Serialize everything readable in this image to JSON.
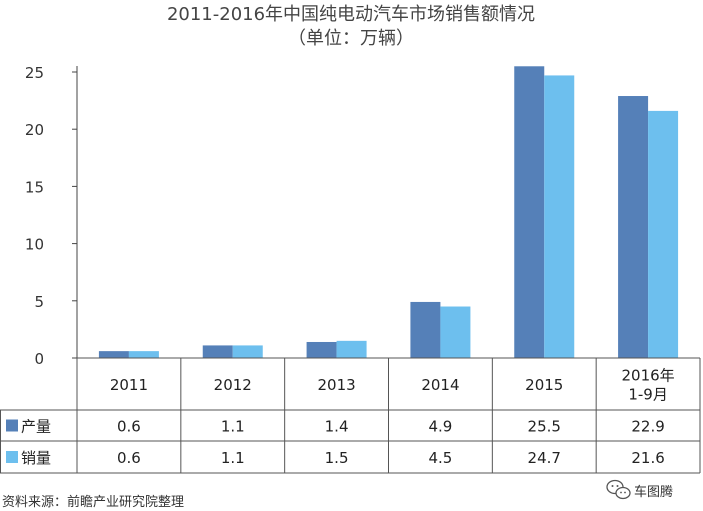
{
  "chart_data": {
    "type": "bar",
    "title": "2011-2016年中国纯电动汽车市场销售额情况",
    "subtitle": "（单位：万辆）",
    "categories": [
      [
        "2011"
      ],
      [
        "2012"
      ],
      [
        "2013"
      ],
      [
        "2014"
      ],
      [
        "2015"
      ],
      [
        "2016年",
        "1-9月"
      ]
    ],
    "series": [
      {
        "name": "产量",
        "color": "#5580b8",
        "values": [
          0.6,
          1.1,
          1.4,
          4.9,
          25.5,
          22.9
        ],
        "labels": [
          "0.6",
          "1.1",
          "1.4",
          "4.9",
          "25.5",
          "22.9"
        ]
      },
      {
        "name": "销量",
        "color": "#6dbfee",
        "values": [
          0.6,
          1.1,
          1.5,
          4.5,
          24.7,
          21.6
        ],
        "labels": [
          "0.6",
          "1.1",
          "1.5",
          "4.5",
          "24.7",
          "21.6"
        ]
      }
    ],
    "ylim": [
      0,
      25
    ],
    "yticks": [
      "0",
      "5",
      "10",
      "15",
      "20",
      "25"
    ],
    "grid": false,
    "legend": "data-table"
  },
  "footer": {
    "source": "资料来源：前瞻产业研究院整理",
    "brand": "车图腾",
    "brand_icon": "wechat-icon"
  }
}
